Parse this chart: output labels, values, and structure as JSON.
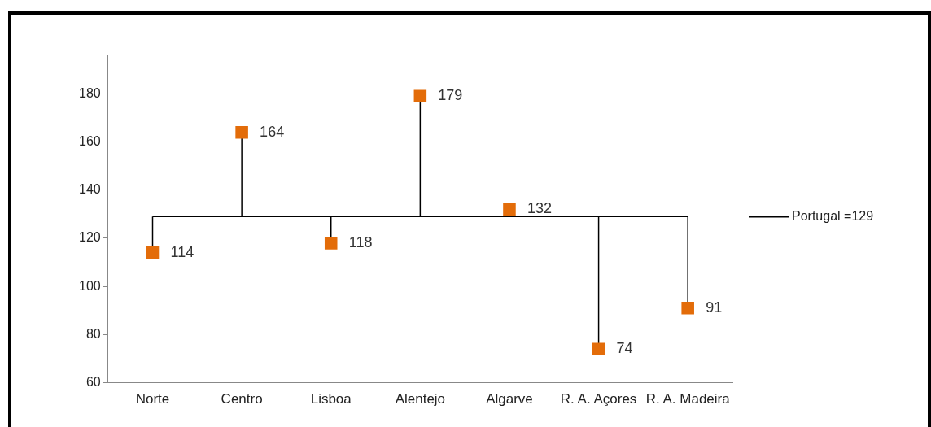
{
  "chart_data": {
    "type": "lollipop",
    "categories": [
      "Norte",
      "Centro",
      "Lisboa",
      "Alentejo",
      "Algarve",
      "R. A. Açores",
      "R. A. Madeira"
    ],
    "values": [
      114,
      164,
      118,
      179,
      132,
      74,
      91
    ],
    "color": "#e36c09",
    "marker": "square",
    "data_labels": true,
    "ylim": [
      60,
      196
    ],
    "yticks": [
      60,
      80,
      100,
      120,
      140,
      160,
      180
    ],
    "grid": false,
    "legend": "right",
    "ref_lines": [
      {
        "axis": "y",
        "value": 129,
        "label": "Portugal =129",
        "color": "#000000"
      }
    ]
  }
}
